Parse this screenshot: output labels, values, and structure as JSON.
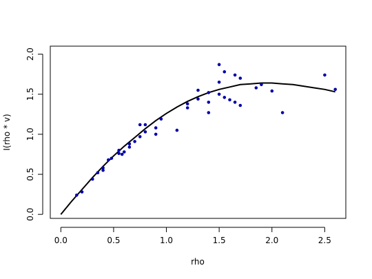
{
  "chart_data": {
    "type": "scatter",
    "title": "",
    "xlabel": "rho",
    "ylabel": "I(rho * v)",
    "xlim": [
      -0.1,
      2.7
    ],
    "ylim": [
      -0.05,
      2.1
    ],
    "xticks": [
      0.0,
      0.5,
      1.0,
      1.5,
      2.0,
      2.5
    ],
    "xtick_labels": [
      "0.0",
      "0.5",
      "1.0",
      "1.5",
      "2.0",
      "2.5"
    ],
    "yticks": [
      0.0,
      0.5,
      1.0,
      1.5,
      2.0
    ],
    "ytick_labels": [
      "0.0",
      "0.5",
      "1.0",
      "1.5",
      "2.0"
    ],
    "grid": false,
    "point_color": "#0000AA",
    "line_color": "#000000",
    "points": [
      {
        "x": 0.15,
        "y": 0.24
      },
      {
        "x": 0.2,
        "y": 0.28
      },
      {
        "x": 0.3,
        "y": 0.44
      },
      {
        "x": 0.35,
        "y": 0.52
      },
      {
        "x": 0.4,
        "y": 0.55
      },
      {
        "x": 0.4,
        "y": 0.58
      },
      {
        "x": 0.45,
        "y": 0.68
      },
      {
        "x": 0.48,
        "y": 0.7
      },
      {
        "x": 0.55,
        "y": 0.76
      },
      {
        "x": 0.55,
        "y": 0.8
      },
      {
        "x": 0.58,
        "y": 0.75
      },
      {
        "x": 0.6,
        "y": 0.78
      },
      {
        "x": 0.65,
        "y": 0.84
      },
      {
        "x": 0.65,
        "y": 0.88
      },
      {
        "x": 0.7,
        "y": 0.91
      },
      {
        "x": 0.75,
        "y": 0.97
      },
      {
        "x": 0.75,
        "y": 1.12
      },
      {
        "x": 0.8,
        "y": 1.12
      },
      {
        "x": 0.8,
        "y": 1.03
      },
      {
        "x": 0.9,
        "y": 1.08
      },
      {
        "x": 0.9,
        "y": 1.0
      },
      {
        "x": 0.95,
        "y": 1.19
      },
      {
        "x": 1.1,
        "y": 1.05
      },
      {
        "x": 1.2,
        "y": 1.38
      },
      {
        "x": 1.2,
        "y": 1.33
      },
      {
        "x": 1.3,
        "y": 1.55
      },
      {
        "x": 1.3,
        "y": 1.44
      },
      {
        "x": 1.4,
        "y": 1.27
      },
      {
        "x": 1.4,
        "y": 1.4
      },
      {
        "x": 1.4,
        "y": 1.52
      },
      {
        "x": 1.5,
        "y": 1.87
      },
      {
        "x": 1.5,
        "y": 1.65
      },
      {
        "x": 1.5,
        "y": 1.5
      },
      {
        "x": 1.55,
        "y": 1.78
      },
      {
        "x": 1.55,
        "y": 1.46
      },
      {
        "x": 1.6,
        "y": 1.43
      },
      {
        "x": 1.65,
        "y": 1.74
      },
      {
        "x": 1.65,
        "y": 1.4
      },
      {
        "x": 1.7,
        "y": 1.36
      },
      {
        "x": 1.7,
        "y": 1.7
      },
      {
        "x": 1.85,
        "y": 1.58
      },
      {
        "x": 1.9,
        "y": 1.62
      },
      {
        "x": 2.0,
        "y": 1.54
      },
      {
        "x": 2.1,
        "y": 1.27
      },
      {
        "x": 2.5,
        "y": 1.74
      },
      {
        "x": 2.6,
        "y": 1.56
      }
    ],
    "fit_line": {
      "x": [
        0.0,
        0.1,
        0.2,
        0.3,
        0.4,
        0.5,
        0.6,
        0.7,
        0.8,
        0.9,
        1.0,
        1.1,
        1.2,
        1.3,
        1.4,
        1.5,
        1.6,
        1.7,
        1.8,
        1.9,
        2.0,
        2.1,
        2.2,
        2.3,
        2.4,
        2.5,
        2.6
      ],
      "y": [
        0.0,
        0.16,
        0.31,
        0.46,
        0.6,
        0.73,
        0.85,
        0.96,
        1.07,
        1.17,
        1.26,
        1.34,
        1.41,
        1.47,
        1.52,
        1.56,
        1.59,
        1.62,
        1.63,
        1.64,
        1.64,
        1.63,
        1.62,
        1.6,
        1.58,
        1.56,
        1.53
      ]
    }
  }
}
